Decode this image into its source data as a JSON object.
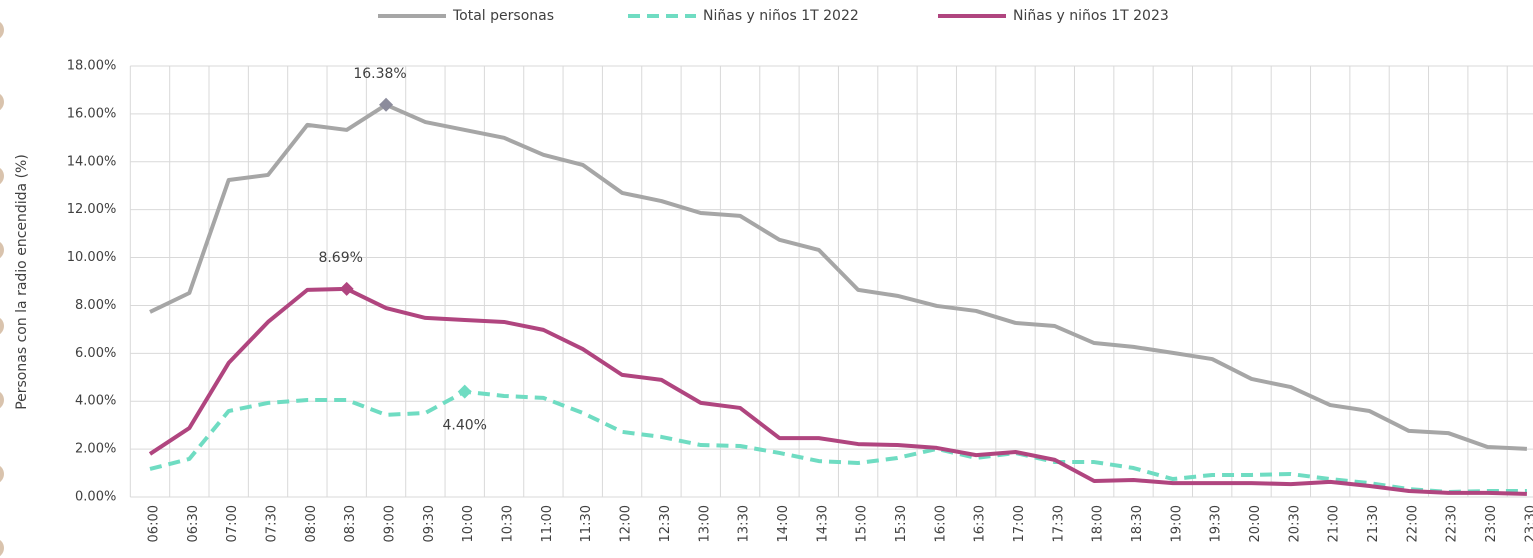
{
  "chart_data": {
    "type": "line",
    "y_label": "Personas con la radio encendida (%)",
    "categories": [
      "06:00",
      "06:30",
      "07:00",
      "07:30",
      "08:00",
      "08:30",
      "09:00",
      "09:30",
      "10:00",
      "10:30",
      "11:00",
      "11:30",
      "12:00",
      "12:30",
      "13:00",
      "13:30",
      "14:00",
      "14:30",
      "15:00",
      "15:30",
      "16:00",
      "16:30",
      "17:00",
      "17:30",
      "18:00",
      "18:30",
      "19:00",
      "19:30",
      "20:00",
      "20:30",
      "21:00",
      "21:30",
      "22:00",
      "22:30",
      "23:00",
      "23:30"
    ],
    "series": [
      {
        "name": "Total personas",
        "color": "#a6a6a6",
        "marker_color": "#8c8c9c",
        "dashed": false,
        "values": [
          7.73,
          8.52,
          13.24,
          13.45,
          15.54,
          15.33,
          16.38,
          15.66,
          15.33,
          15.0,
          14.29,
          13.87,
          12.7,
          12.36,
          11.86,
          11.74,
          10.74,
          10.32,
          8.65,
          8.4,
          7.98,
          7.77,
          7.27,
          7.14,
          6.43,
          6.27,
          6.02,
          5.76,
          4.93,
          4.59,
          3.84,
          3.59,
          2.76,
          2.67,
          2.09,
          2.01
        ],
        "value_labels": [
          null,
          null,
          null,
          null,
          null,
          null,
          "16.38%",
          null,
          null,
          null,
          null,
          null,
          null,
          null,
          null,
          null,
          null,
          null,
          null,
          null,
          null,
          null,
          null,
          null,
          null,
          null,
          null,
          null,
          null,
          null,
          null,
          null,
          null,
          null,
          null,
          null
        ]
      },
      {
        "name": "Niñas y niños 1T 2022",
        "color": "#6fdcc2",
        "marker_color": "#6fdcc2",
        "dashed": true,
        "values": [
          1.17,
          1.59,
          3.59,
          3.93,
          4.05,
          4.05,
          3.43,
          3.51,
          4.4,
          4.22,
          4.14,
          3.51,
          2.72,
          2.51,
          2.17,
          2.13,
          1.84,
          1.5,
          1.42,
          1.63,
          2.01,
          1.63,
          1.84,
          1.46,
          1.46,
          1.21,
          0.75,
          0.92,
          0.92,
          0.96,
          0.75,
          0.58,
          0.33,
          0.21,
          0.25,
          0.25
        ],
        "value_labels": [
          null,
          null,
          null,
          null,
          null,
          null,
          null,
          null,
          "4.40%",
          null,
          null,
          null,
          null,
          null,
          null,
          null,
          null,
          null,
          null,
          null,
          null,
          null,
          null,
          null,
          null,
          null,
          null,
          null,
          null,
          null,
          null,
          null,
          null,
          null,
          null,
          null
        ]
      },
      {
        "name": "Niñas y niños 1T 2023",
        "color": "#b0457f",
        "marker_color": "#b0457f",
        "dashed": false,
        "values": [
          1.8,
          2.88,
          5.6,
          7.31,
          8.65,
          8.69,
          7.89,
          7.48,
          7.39,
          7.31,
          6.98,
          6.18,
          5.1,
          4.89,
          3.93,
          3.72,
          2.46,
          2.46,
          2.21,
          2.17,
          2.05,
          1.75,
          1.88,
          1.55,
          0.67,
          0.71,
          0.58,
          0.58,
          0.58,
          0.54,
          0.63,
          0.46,
          0.25,
          0.17,
          0.17,
          0.13
        ],
        "value_labels": [
          null,
          null,
          null,
          null,
          null,
          "8.69%",
          null,
          null,
          null,
          null,
          null,
          null,
          null,
          null,
          null,
          null,
          null,
          null,
          null,
          null,
          null,
          null,
          null,
          null,
          null,
          null,
          null,
          null,
          null,
          null,
          null,
          null,
          null,
          null,
          null,
          null
        ]
      }
    ],
    "ylim": [
      0,
      18
    ],
    "yticks": [
      {
        "value": 0,
        "label": "0.00%"
      },
      {
        "value": 2,
        "label": "2.00%"
      },
      {
        "value": 4,
        "label": "4.00%"
      },
      {
        "value": 6,
        "label": "6.00%"
      },
      {
        "value": 8,
        "label": "8.00%"
      },
      {
        "value": 10,
        "label": "10.00%"
      },
      {
        "value": 12,
        "label": "12.00%"
      },
      {
        "value": 14,
        "label": "14.00%"
      },
      {
        "value": 16,
        "label": "16.00%"
      },
      {
        "value": 18,
        "label": "18.00%"
      }
    ],
    "grid": true,
    "legend": "top"
  }
}
